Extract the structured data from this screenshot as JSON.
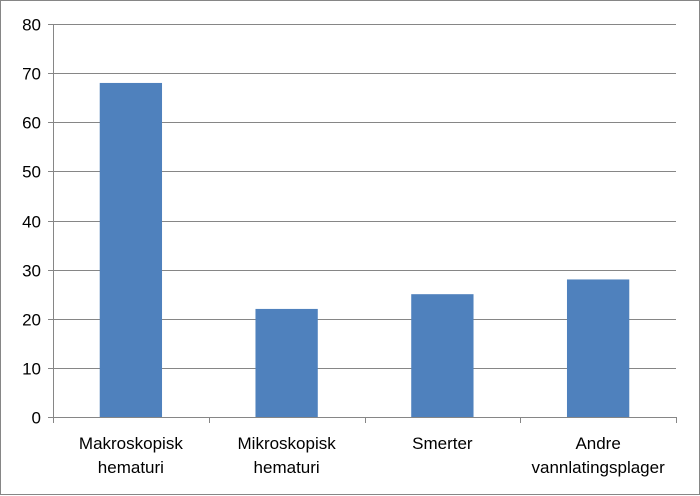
{
  "chart_data": {
    "type": "bar",
    "title": "",
    "xlabel": "",
    "ylabel": "",
    "categories": [
      [
        "Makroskopisk",
        "hematuri"
      ],
      [
        "Mikroskopisk",
        "hematuri"
      ],
      [
        "Smerter"
      ],
      [
        "Andre",
        "vannlatingsplager"
      ]
    ],
    "values": [
      68,
      22,
      25,
      28
    ],
    "ylim": [
      0,
      80
    ],
    "yticks": [
      "0",
      "10",
      "20",
      "30",
      "40",
      "50",
      "60",
      "70",
      "80"
    ],
    "grid": true,
    "legend": "none",
    "bar_color": "#4F81BD",
    "grid_color": "#868686",
    "axis_color": "#868686"
  }
}
